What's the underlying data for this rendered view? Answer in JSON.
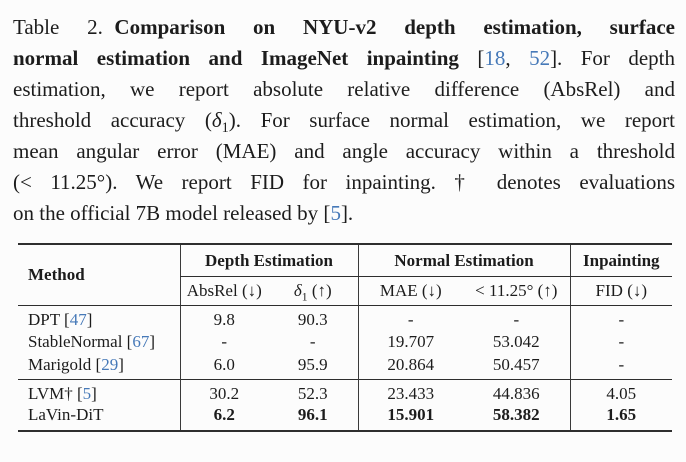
{
  "colors": {
    "text": "#1c1c1c",
    "link": "#4679b8",
    "rule": "#2e2e2e",
    "background": "#fcfcfc"
  },
  "caption": {
    "lines": [
      {
        "last": false,
        "segments": [
          {
            "t": "Table 2.",
            "g": true
          },
          {
            "t": "Comparison on NYU-v2 depth estimation, surface",
            "b": true
          }
        ]
      },
      {
        "last": false,
        "segments": [
          {
            "t": "normal estimation and ImageNet inpainting",
            "b": true
          },
          {
            "t": " ["
          },
          {
            "t": "18",
            "cite": true
          },
          {
            "t": ", "
          },
          {
            "t": "52",
            "cite": true
          },
          {
            "t": "]. For depth"
          }
        ]
      },
      {
        "last": false,
        "segments": [
          {
            "t": "estimation, we report absolute relative difference (AbsRel) and"
          }
        ]
      },
      {
        "last": false,
        "segments": [
          {
            "t": "threshold accuracy ("
          },
          {
            "t": "δ",
            "i": true
          },
          {
            "t": "1",
            "sub": true
          },
          {
            "t": "). For surface normal estimation, we report"
          }
        ]
      },
      {
        "last": false,
        "segments": [
          {
            "t": "mean angular error (MAE) and angle accuracy within a threshold"
          }
        ]
      },
      {
        "last": false,
        "segments": [
          {
            "t": "(< 11.25°). We report FID for inpainting. † denotes evaluations"
          }
        ]
      },
      {
        "last": true,
        "segments": [
          {
            "t": "on the official 7B model released by ["
          },
          {
            "t": "5",
            "cite": true
          },
          {
            "t": "]."
          }
        ]
      }
    ]
  },
  "table": {
    "method_header": [
      {
        "t": "Method"
      }
    ],
    "groups": [
      {
        "name": "depth-estimation",
        "span": 2,
        "segments": [
          {
            "t": "Depth Estimation"
          }
        ]
      },
      {
        "name": "normal-estimation",
        "span": 2,
        "segments": [
          {
            "t": "Normal Estimation"
          }
        ]
      },
      {
        "name": "inpainting",
        "span": 1,
        "segments": [
          {
            "t": "Inpainting"
          }
        ]
      }
    ],
    "sub_headers": [
      {
        "name": "absrel",
        "segments": [
          {
            "t": "AbsRel (↓)"
          }
        ]
      },
      {
        "name": "delta1",
        "segments": [
          {
            "t": "δ",
            "i": true
          },
          {
            "t": "1",
            "sub": true
          },
          {
            "t": " (↑)"
          }
        ]
      },
      {
        "name": "mae",
        "segments": [
          {
            "t": "MAE (↓)"
          }
        ]
      },
      {
        "name": "angle-acc",
        "segments": [
          {
            "t": "< 11.25° (↑)"
          }
        ]
      },
      {
        "name": "fid",
        "segments": [
          {
            "t": "FID (↓)"
          }
        ]
      }
    ],
    "rows": [
      {
        "section": 1,
        "bold": false,
        "method": [
          {
            "t": "DPT ["
          },
          {
            "t": "47",
            "cite": true
          },
          {
            "t": "]"
          }
        ],
        "values": [
          "9.8",
          "90.3",
          "-",
          "-",
          "-"
        ]
      },
      {
        "section": 1,
        "bold": false,
        "method": [
          {
            "t": "StableNormal ["
          },
          {
            "t": "67",
            "cite": true
          },
          {
            "t": "]"
          }
        ],
        "values": [
          "-",
          "-",
          "19.707",
          "53.042",
          "-"
        ]
      },
      {
        "section": 1,
        "bold": false,
        "method": [
          {
            "t": "Marigold ["
          },
          {
            "t": "29",
            "cite": true
          },
          {
            "t": "]"
          }
        ],
        "values": [
          "6.0",
          "95.9",
          "20.864",
          "50.457",
          "-"
        ]
      },
      {
        "section": 2,
        "bold": false,
        "method": [
          {
            "t": "LVM† ["
          },
          {
            "t": "5",
            "cite": true
          },
          {
            "t": "]"
          }
        ],
        "values": [
          "30.2",
          "52.3",
          "23.433",
          "44.836",
          "4.05"
        ]
      },
      {
        "section": 2,
        "bold": true,
        "method": [
          {
            "t": "LaVin-DiT"
          }
        ],
        "values": [
          "6.2",
          "96.1",
          "15.901",
          "58.382",
          "1.65"
        ]
      }
    ]
  }
}
